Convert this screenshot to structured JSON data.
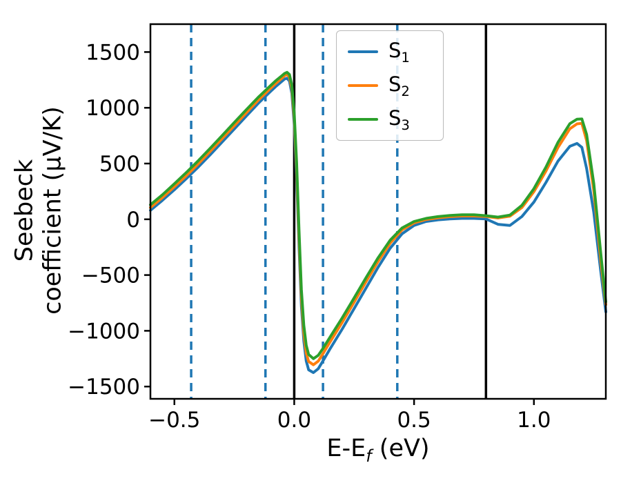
{
  "figure": {
    "ylabel_line1": "Seebeck",
    "ylabel_line2": "coefficient  (μV/K)",
    "xlabel_main": "E-E",
    "xlabel_sub": "f",
    "xlabel_rest": " (eV)"
  },
  "legend": {
    "items": [
      {
        "base": "S",
        "sub": "1"
      },
      {
        "base": "S",
        "sub": "2"
      },
      {
        "base": "S",
        "sub": "3"
      }
    ]
  },
  "chart_data": {
    "type": "line",
    "title": "",
    "xlabel": "E-E_f (eV)",
    "ylabel": "Seebeck coefficient (μV/K)",
    "legend_position": "upper center",
    "grid": false,
    "xlim": [
      -0.6,
      1.3
    ],
    "ylim": [
      -1610,
      1750
    ],
    "xticks": [
      -0.5,
      0.0,
      0.5,
      1.0
    ],
    "xticklabels": [
      "−0.5",
      "0.0",
      "0.5",
      "1.0"
    ],
    "yticks": [
      -1500,
      -1000,
      -500,
      0,
      500,
      1000,
      1500
    ],
    "yticklabels": [
      "−1500",
      "−1000",
      "−500",
      "0",
      "500",
      "1000",
      "1500"
    ],
    "vlines_dashed": {
      "positions": [
        -0.43,
        -0.12,
        0.12,
        0.43
      ],
      "color": "#1f77b4",
      "style": "dashed"
    },
    "vlines_solid": {
      "positions": [
        0.0,
        0.8
      ],
      "color": "#000000",
      "style": "solid"
    },
    "x": [
      -0.6,
      -0.55,
      -0.5,
      -0.45,
      -0.4,
      -0.35,
      -0.3,
      -0.25,
      -0.2,
      -0.15,
      -0.1,
      -0.075,
      -0.05,
      -0.04,
      -0.03,
      -0.02,
      -0.01,
      0.0,
      0.01,
      0.02,
      0.03,
      0.04,
      0.05,
      0.06,
      0.08,
      0.1,
      0.12,
      0.15,
      0.2,
      0.25,
      0.3,
      0.35,
      0.4,
      0.45,
      0.5,
      0.55,
      0.6,
      0.65,
      0.7,
      0.75,
      0.8,
      0.85,
      0.9,
      0.95,
      1.0,
      1.05,
      1.1,
      1.15,
      1.18,
      1.2,
      1.22,
      1.25,
      1.28,
      1.3
    ],
    "series": [
      {
        "name": "S1",
        "color": "#1f77b4",
        "values": [
          80,
          170,
          265,
          365,
          470,
          580,
          695,
          810,
          925,
          1040,
          1145,
          1195,
          1240,
          1258,
          1265,
          1240,
          1130,
          850,
          380,
          -250,
          -780,
          -1090,
          -1270,
          -1350,
          -1375,
          -1340,
          -1270,
          -1160,
          -985,
          -800,
          -615,
          -430,
          -260,
          -130,
          -55,
          -20,
          -5,
          3,
          8,
          8,
          3,
          -45,
          -55,
          25,
          155,
          330,
          520,
          655,
          680,
          645,
          455,
          60,
          -490,
          -830
        ]
      },
      {
        "name": "S2",
        "color": "#ff7f0e",
        "values": [
          105,
          195,
          292,
          392,
          498,
          610,
          725,
          840,
          955,
          1068,
          1172,
          1222,
          1268,
          1288,
          1298,
          1275,
          1175,
          910,
          450,
          -170,
          -700,
          -1020,
          -1200,
          -1275,
          -1305,
          -1272,
          -1205,
          -1098,
          -925,
          -742,
          -558,
          -378,
          -215,
          -95,
          -32,
          -2,
          14,
          24,
          30,
          30,
          25,
          12,
          28,
          105,
          248,
          432,
          642,
          812,
          856,
          860,
          705,
          255,
          -395,
          -765
        ]
      },
      {
        "name": "S3",
        "color": "#2ca02c",
        "values": [
          130,
          220,
          318,
          420,
          526,
          638,
          752,
          868,
          982,
          1094,
          1196,
          1246,
          1290,
          1308,
          1318,
          1298,
          1205,
          955,
          510,
          -100,
          -630,
          -950,
          -1130,
          -1212,
          -1250,
          -1220,
          -1158,
          -1055,
          -885,
          -705,
          -522,
          -345,
          -188,
          -78,
          -20,
          8,
          24,
          34,
          40,
          40,
          32,
          20,
          38,
          125,
          275,
          468,
          688,
          858,
          898,
          900,
          760,
          320,
          -330,
          -740
        ]
      }
    ]
  }
}
